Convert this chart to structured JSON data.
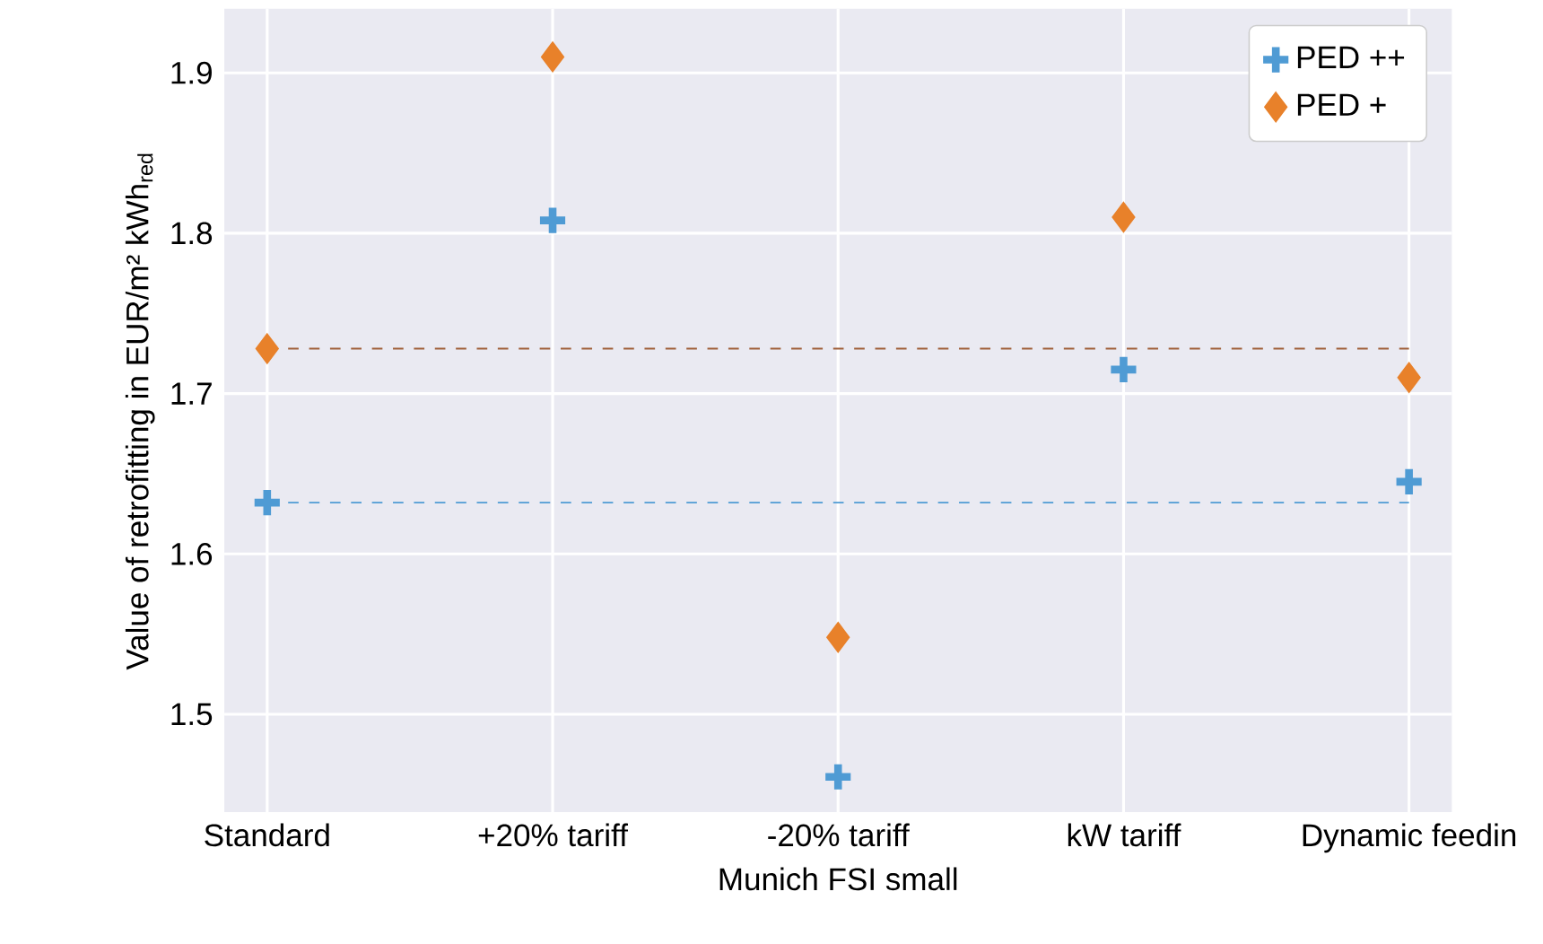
{
  "chart_data": {
    "type": "scatter",
    "xlabel": "Munich FSI small",
    "ylabel": "Value of retrofitting in EUR/m² kWh$_{red}$",
    "categories": [
      "Standard",
      "+20% tariff",
      "-20% tariff",
      "kW tariff",
      "Dynamic feedin"
    ],
    "series": [
      {
        "name": "PED ++",
        "color": "#4f9bd4",
        "marker": "cross",
        "values": [
          1.632,
          1.808,
          1.461,
          1.715,
          1.645
        ]
      },
      {
        "name": "PED +",
        "color": "#e8812a",
        "marker": "diamond",
        "values": [
          1.728,
          1.91,
          1.548,
          1.81,
          1.71
        ]
      }
    ],
    "ref_lines": [
      {
        "axis": "y",
        "value": 1.632,
        "color": "#4f9bd4",
        "line_style": "dashed"
      },
      {
        "axis": "y",
        "value": 1.728,
        "color": "#a0603a",
        "line_style": "dashed"
      }
    ],
    "ylim": [
      1.439,
      1.94
    ],
    "yticks": [
      1.5,
      1.6,
      1.7,
      1.8,
      1.9
    ],
    "grid": true,
    "legend": "top right"
  }
}
